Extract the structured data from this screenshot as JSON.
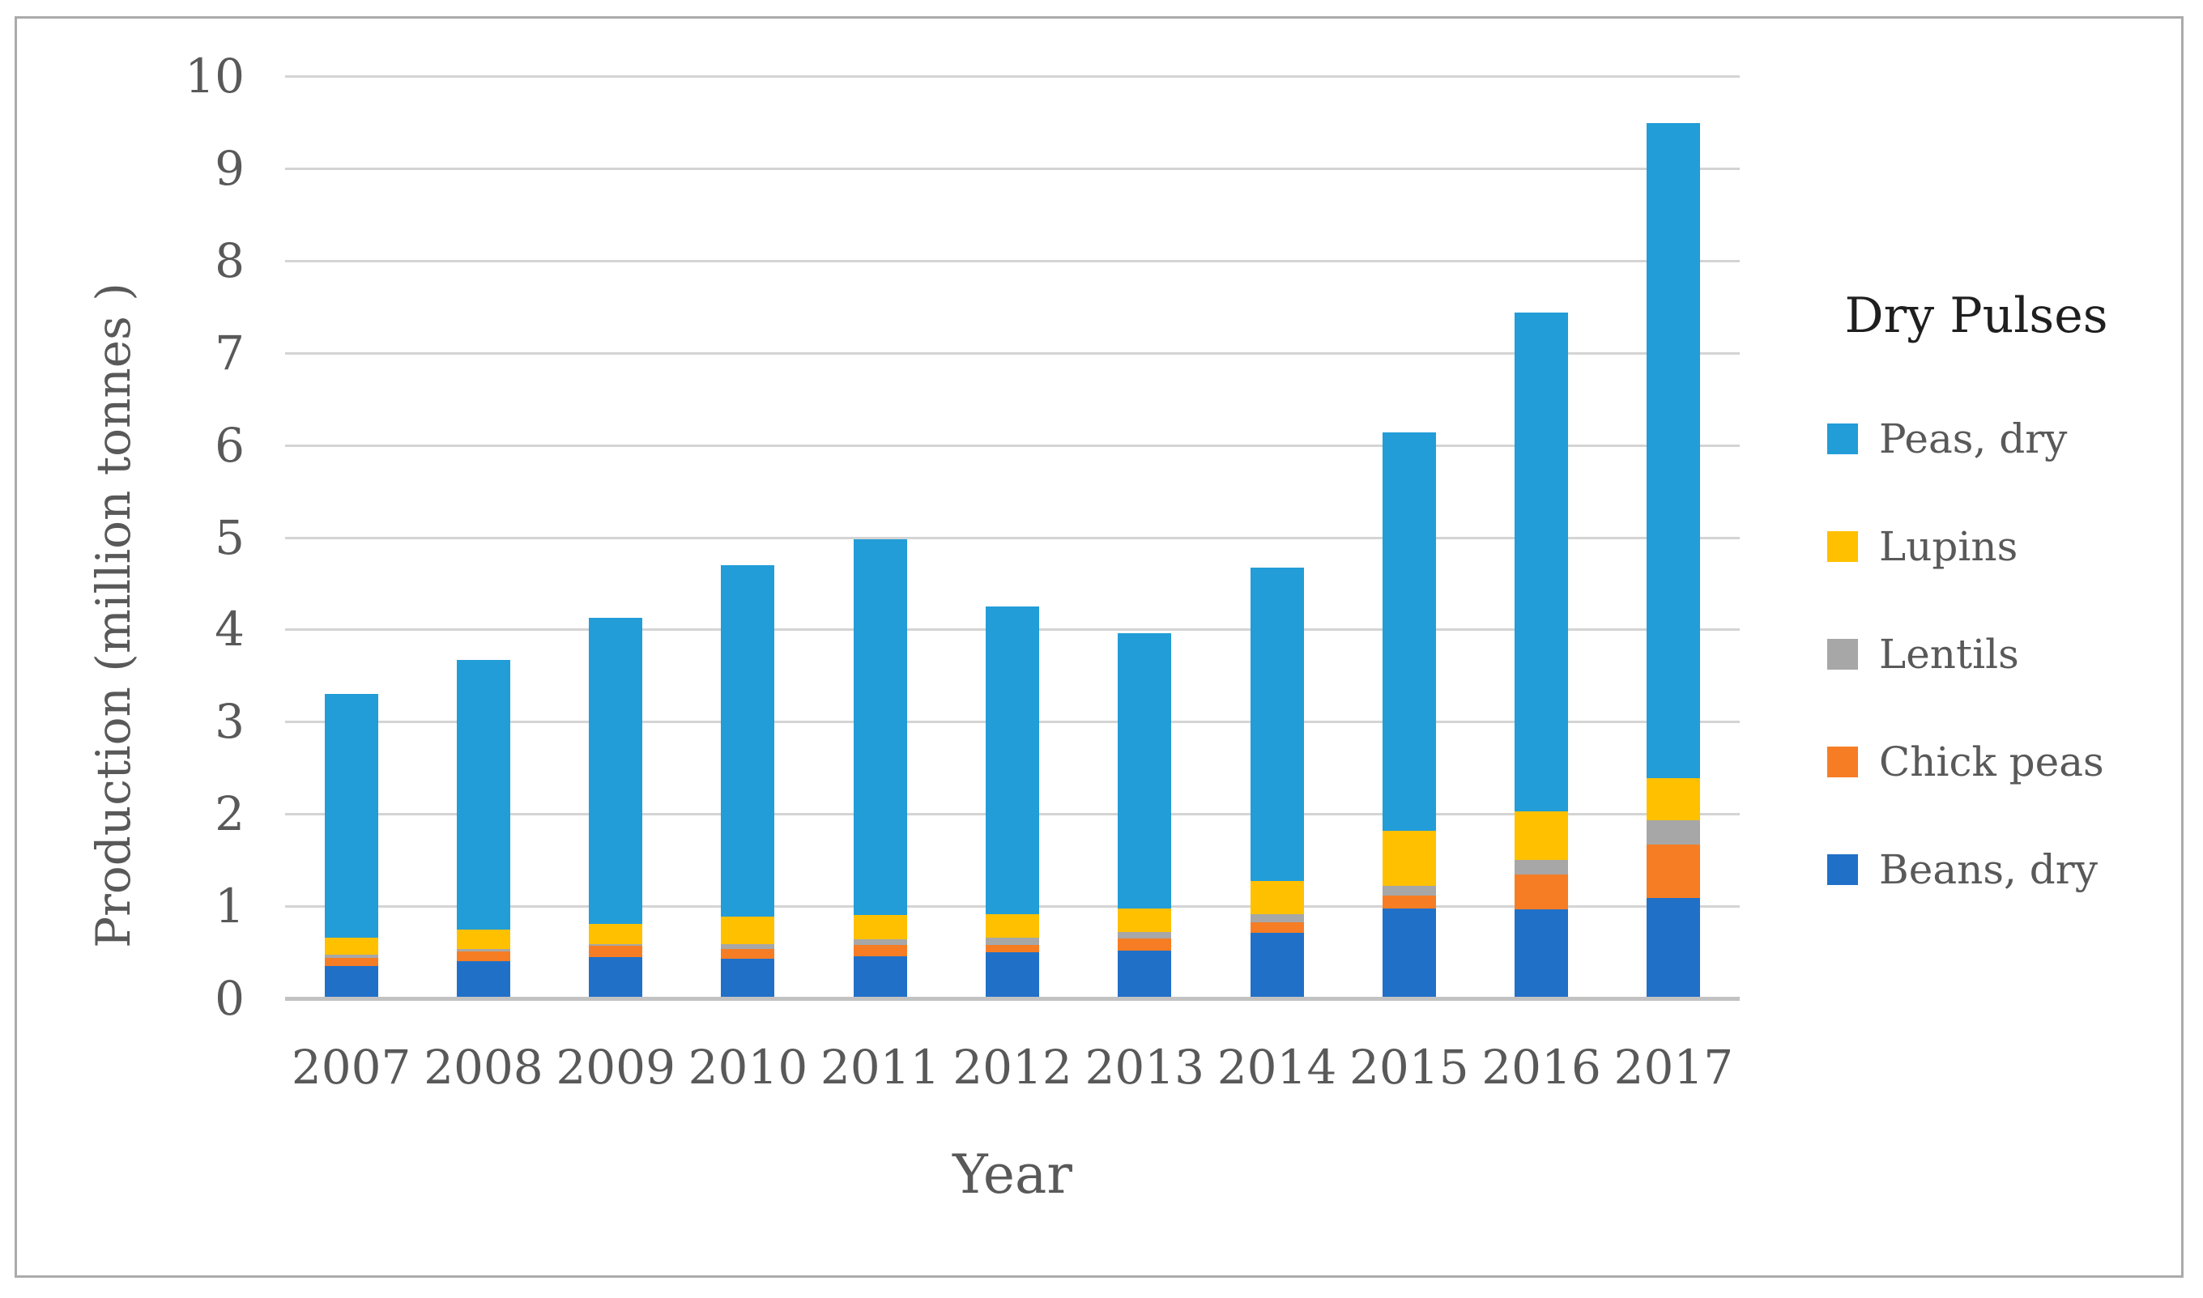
{
  "figure": {
    "background": "#ffffff",
    "border_color": "#ababab",
    "text_color": "#595959",
    "grid_color": "#d4d4d4",
    "axis_line_color": "#c2c2c2"
  },
  "chart_data": {
    "type": "bar",
    "stacked": true,
    "title": "Dry Pulses",
    "xlabel": "Year",
    "ylabel": "Production (million tonnes )",
    "ylim": [
      0,
      10
    ],
    "yticks": [
      0,
      1,
      2,
      3,
      4,
      5,
      6,
      7,
      8,
      9,
      10
    ],
    "grid": true,
    "legend_position": "right",
    "legend_title": "Dry Pulses",
    "categories": [
      "2007",
      "2008",
      "2009",
      "2010",
      "2011",
      "2012",
      "2013",
      "2014",
      "2015",
      "2016",
      "2017"
    ],
    "series": [
      {
        "name": "Beans, dry",
        "color": "#2170c8",
        "values": [
          0.33,
          0.39,
          0.43,
          0.41,
          0.44,
          0.48,
          0.5,
          0.69,
          0.96,
          0.95,
          1.07
        ]
      },
      {
        "name": "Chick peas",
        "color": "#f67d24",
        "values": [
          0.09,
          0.1,
          0.12,
          0.11,
          0.12,
          0.08,
          0.13,
          0.12,
          0.14,
          0.38,
          0.58
        ]
      },
      {
        "name": "Lentils",
        "color": "#a7a7a7",
        "values": [
          0.04,
          0.03,
          0.02,
          0.05,
          0.06,
          0.08,
          0.07,
          0.09,
          0.1,
          0.15,
          0.26
        ]
      },
      {
        "name": "Lupins",
        "color": "#ffc000",
        "values": [
          0.18,
          0.21,
          0.22,
          0.3,
          0.27,
          0.26,
          0.26,
          0.36,
          0.6,
          0.53,
          0.46
        ]
      },
      {
        "name": "Peas, dry",
        "color": "#229dd8",
        "values": [
          2.64,
          2.92,
          3.32,
          3.81,
          4.07,
          3.33,
          2.98,
          3.39,
          4.32,
          5.41,
          7.1
        ]
      }
    ],
    "totals": [
      3.28,
      3.65,
      4.11,
      4.68,
      4.96,
      4.23,
      3.94,
      4.65,
      6.12,
      7.42,
      9.47
    ]
  }
}
